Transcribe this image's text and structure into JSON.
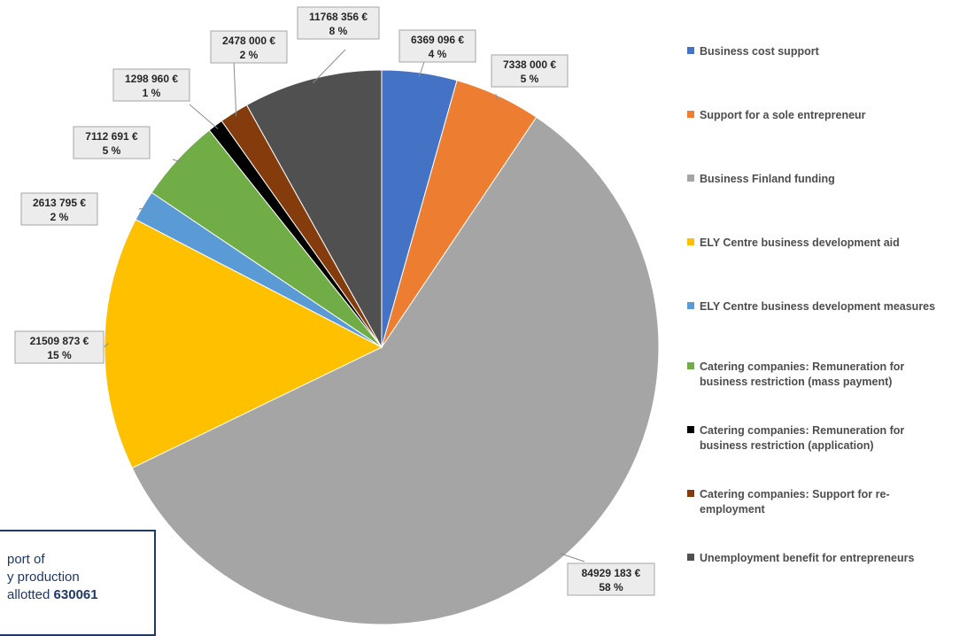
{
  "chart_data": {
    "type": "pie",
    "slices": [
      {
        "name": "Business cost support",
        "value": 6369096,
        "value_label": "6369 096 €",
        "percent_label": "4 %",
        "color": "#4472c4"
      },
      {
        "name": "Support for a sole entrepreneur",
        "value": 7338000,
        "value_label": "7338 000 €",
        "percent_label": "5 %",
        "color": "#ed7d31"
      },
      {
        "name": "Business Finland funding",
        "value": 84929183,
        "value_label": "84929 183 €",
        "percent_label": "58 %",
        "color": "#a5a5a5"
      },
      {
        "name": "ELY Centre business development aid",
        "value": 21509873,
        "value_label": "21509 873 €",
        "percent_label": "15 %",
        "color": "#ffc000"
      },
      {
        "name": "ELY Centre business development measures",
        "value": 2613795,
        "value_label": "2613 795 €",
        "percent_label": "2 %",
        "color": "#5b9bd5"
      },
      {
        "name": "Catering companies: Remuneration for business restriction (mass payment)",
        "value": 7112691,
        "value_label": "7112 691 €",
        "percent_label": "5 %",
        "color": "#70ad47"
      },
      {
        "name": "Catering companies: Remuneration for business restriction (application)",
        "value": 1298960,
        "value_label": "1298 960 €",
        "percent_label": "1 %",
        "color": "#000000"
      },
      {
        "name": "Catering companies: Support for re-employment",
        "value": 2478000,
        "value_label": "2478 000 €",
        "percent_label": "2 %",
        "color": "#843c0c"
      },
      {
        "name": "Unemployment benefit for entrepreneurs",
        "value": 11768356,
        "value_label": "11768 356 €",
        "percent_label": "8 %",
        "color": "#505050"
      }
    ],
    "legend_placement": "right"
  },
  "legend": {
    "items": [
      {
        "lines": [
          "Business cost support"
        ],
        "color": "#4472c4"
      },
      {
        "lines": [
          "Support for a sole entrepreneur"
        ],
        "color": "#ed7d31"
      },
      {
        "lines": [
          "Business Finland funding"
        ],
        "color": "#a5a5a5"
      },
      {
        "lines": [
          "ELY Centre business development aid"
        ],
        "color": "#ffc000"
      },
      {
        "lines": [
          "ELY Centre business development measures"
        ],
        "color": "#5b9bd5"
      },
      {
        "lines": [
          "Catering companies: Remuneration for",
          "business restriction (mass payment)"
        ],
        "color": "#70ad47"
      },
      {
        "lines": [
          "Catering companies: Remuneration for",
          "business restriction (application)"
        ],
        "color": "#000000"
      },
      {
        "lines": [
          "Catering companies: Support for re-",
          "employment"
        ],
        "color": "#843c0c"
      },
      {
        "lines": [
          "Unemployment benefit for entrepreneurs"
        ],
        "color": "#505050"
      }
    ]
  },
  "note": {
    "line1": "port of",
    "line2": "y production",
    "line3_prefix": "allotted ",
    "line3_bold": "630061"
  }
}
